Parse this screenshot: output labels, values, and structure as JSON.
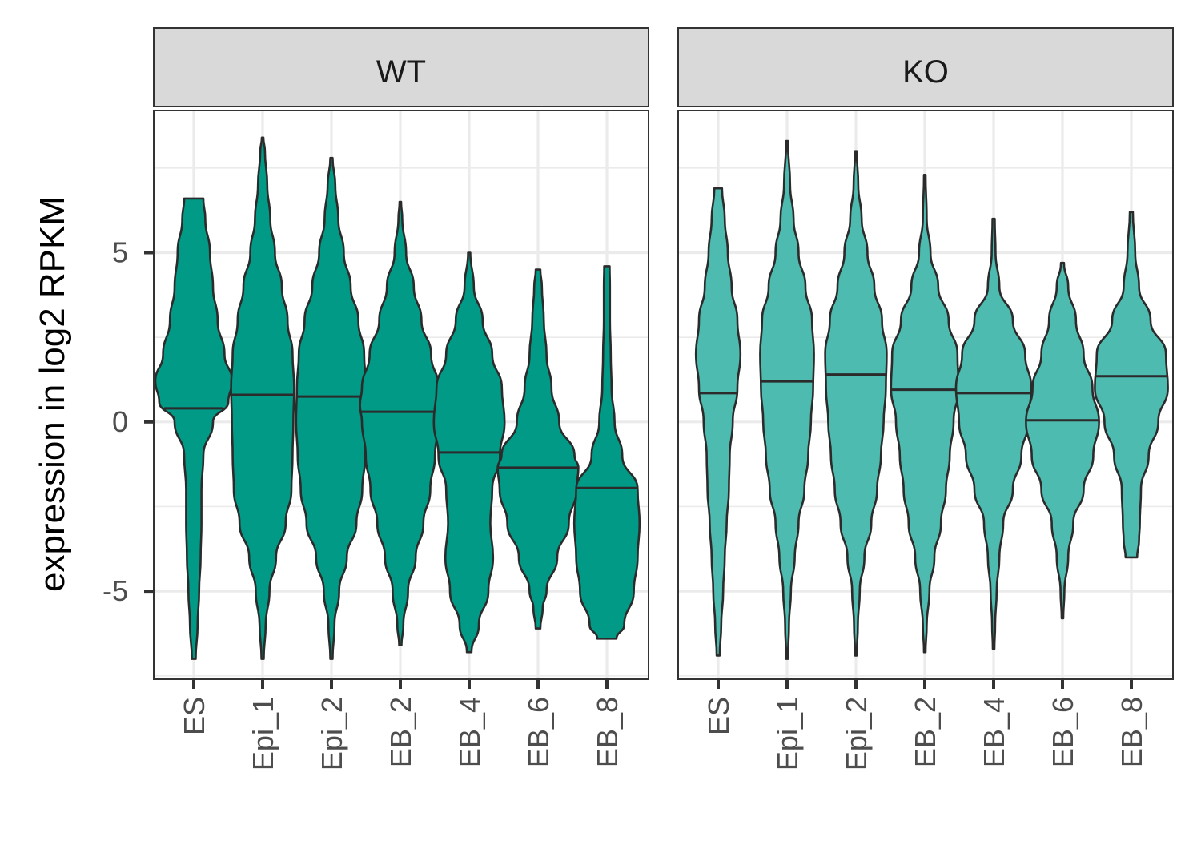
{
  "chart_data": {
    "type": "violin",
    "ylabel": "expression in log2 RPKM",
    "xlabel": "",
    "ylim": [
      -7.6,
      9.2
    ],
    "y_ticks": [
      "5",
      "0",
      "-5"
    ],
    "y_tick_values": [
      5,
      0,
      -5
    ],
    "categories": [
      "ES",
      "Epi_1",
      "Epi_2",
      "EB_2",
      "EB_4",
      "EB_6",
      "EB_8"
    ],
    "grid": true,
    "panels": [
      {
        "name": "WT",
        "fill": "#009a86",
        "violins": [
          {
            "category": "ES",
            "min": -7.0,
            "max": 6.6,
            "median": 0.4,
            "profile": [
              [
                -7.0,
                0.05
              ],
              [
                -6.0,
                0.1
              ],
              [
                -5.0,
                0.14
              ],
              [
                -4.0,
                0.18
              ],
              [
                -3.0,
                0.2
              ],
              [
                -2.0,
                0.2
              ],
              [
                -1.0,
                0.25
              ],
              [
                0.0,
                0.5
              ],
              [
                0.6,
                0.9
              ],
              [
                1.2,
                1.0
              ],
              [
                2.0,
                0.8
              ],
              [
                3.0,
                0.62
              ],
              [
                4.0,
                0.5
              ],
              [
                5.0,
                0.42
              ],
              [
                6.0,
                0.3
              ],
              [
                6.6,
                0.25
              ]
            ]
          },
          {
            "category": "Epi_1",
            "min": -7.0,
            "max": 8.4,
            "median": 0.8,
            "profile": [
              [
                -7.0,
                0.03
              ],
              [
                -6.0,
                0.08
              ],
              [
                -5.0,
                0.18
              ],
              [
                -4.0,
                0.35
              ],
              [
                -3.0,
                0.6
              ],
              [
                -2.0,
                0.75
              ],
              [
                -1.0,
                0.78
              ],
              [
                0.0,
                0.8
              ],
              [
                1.0,
                0.82
              ],
              [
                2.0,
                0.78
              ],
              [
                3.0,
                0.65
              ],
              [
                4.0,
                0.5
              ],
              [
                5.0,
                0.32
              ],
              [
                6.0,
                0.2
              ],
              [
                7.0,
                0.12
              ],
              [
                8.0,
                0.06
              ],
              [
                8.4,
                0.02
              ]
            ]
          },
          {
            "category": "Epi_2",
            "min": -7.0,
            "max": 7.8,
            "median": 0.75,
            "profile": [
              [
                -7.0,
                0.03
              ],
              [
                -6.0,
                0.08
              ],
              [
                -5.0,
                0.2
              ],
              [
                -4.0,
                0.4
              ],
              [
                -3.0,
                0.65
              ],
              [
                -2.0,
                0.8
              ],
              [
                -1.0,
                0.88
              ],
              [
                0.0,
                0.92
              ],
              [
                1.0,
                0.9
              ],
              [
                2.0,
                0.85
              ],
              [
                3.0,
                0.7
              ],
              [
                4.0,
                0.5
              ],
              [
                5.0,
                0.32
              ],
              [
                6.0,
                0.18
              ],
              [
                7.0,
                0.1
              ],
              [
                7.8,
                0.03
              ]
            ]
          },
          {
            "category": "EB_2",
            "min": -6.6,
            "max": 6.5,
            "median": 0.3,
            "profile": [
              [
                -6.6,
                0.03
              ],
              [
                -6.0,
                0.08
              ],
              [
                -5.0,
                0.2
              ],
              [
                -4.0,
                0.4
              ],
              [
                -3.0,
                0.6
              ],
              [
                -2.0,
                0.78
              ],
              [
                -1.0,
                0.9
              ],
              [
                0.0,
                1.0
              ],
              [
                0.5,
                1.05
              ],
              [
                1.0,
                1.0
              ],
              [
                2.0,
                0.8
              ],
              [
                3.0,
                0.55
              ],
              [
                4.0,
                0.35
              ],
              [
                5.0,
                0.15
              ],
              [
                6.0,
                0.05
              ],
              [
                6.5,
                0.02
              ]
            ]
          },
          {
            "category": "EB_4",
            "min": -6.8,
            "max": 5.0,
            "median": -0.9,
            "profile": [
              [
                -6.8,
                0.06
              ],
              [
                -6.0,
                0.25
              ],
              [
                -5.0,
                0.5
              ],
              [
                -4.0,
                0.62
              ],
              [
                -3.0,
                0.55
              ],
              [
                -2.0,
                0.6
              ],
              [
                -1.0,
                0.8
              ],
              [
                0.0,
                0.92
              ],
              [
                1.0,
                0.85
              ],
              [
                2.0,
                0.6
              ],
              [
                3.0,
                0.35
              ],
              [
                4.0,
                0.12
              ],
              [
                5.0,
                0.03
              ]
            ]
          },
          {
            "category": "EB_6",
            "min": -6.1,
            "max": 4.5,
            "median": -1.35,
            "profile": [
              [
                -6.1,
                0.06
              ],
              [
                -5.5,
                0.12
              ],
              [
                -5.0,
                0.22
              ],
              [
                -4.0,
                0.5
              ],
              [
                -3.0,
                0.8
              ],
              [
                -2.0,
                1.0
              ],
              [
                -1.35,
                1.05
              ],
              [
                -1.0,
                0.95
              ],
              [
                0.0,
                0.55
              ],
              [
                1.0,
                0.35
              ],
              [
                2.0,
                0.22
              ],
              [
                3.0,
                0.15
              ],
              [
                4.0,
                0.1
              ],
              [
                4.5,
                0.06
              ]
            ]
          },
          {
            "category": "EB_8",
            "min": -6.4,
            "max": 4.6,
            "median": -1.95,
            "profile": [
              [
                -6.4,
                0.25
              ],
              [
                -6.0,
                0.45
              ],
              [
                -5.0,
                0.7
              ],
              [
                -4.0,
                0.8
              ],
              [
                -3.0,
                0.85
              ],
              [
                -2.0,
                0.8
              ],
              [
                -1.0,
                0.4
              ],
              [
                0.0,
                0.2
              ],
              [
                1.0,
                0.12
              ],
              [
                2.0,
                0.1
              ],
              [
                3.0,
                0.08
              ],
              [
                4.0,
                0.08
              ],
              [
                4.6,
                0.07
              ]
            ]
          }
        ]
      },
      {
        "name": "KO",
        "fill": "#4dbbaf",
        "violins": [
          {
            "category": "ES",
            "min": -6.9,
            "max": 6.9,
            "median": 0.85,
            "profile": [
              [
                -6.9,
                0.04
              ],
              [
                -6.0,
                0.08
              ],
              [
                -5.0,
                0.13
              ],
              [
                -4.0,
                0.17
              ],
              [
                -3.0,
                0.22
              ],
              [
                -2.0,
                0.28
              ],
              [
                -1.0,
                0.3
              ],
              [
                0.0,
                0.38
              ],
              [
                1.0,
                0.5
              ],
              [
                2.0,
                0.58
              ],
              [
                3.0,
                0.5
              ],
              [
                4.0,
                0.35
              ],
              [
                5.0,
                0.25
              ],
              [
                6.0,
                0.17
              ],
              [
                6.9,
                0.1
              ]
            ]
          },
          {
            "category": "Epi_1",
            "min": -7.0,
            "max": 8.3,
            "median": 1.2,
            "profile": [
              [
                -7.0,
                0.02
              ],
              [
                -6.0,
                0.05
              ],
              [
                -5.0,
                0.1
              ],
              [
                -4.0,
                0.2
              ],
              [
                -3.0,
                0.3
              ],
              [
                -2.0,
                0.45
              ],
              [
                -1.0,
                0.55
              ],
              [
                0.0,
                0.62
              ],
              [
                1.0,
                0.68
              ],
              [
                2.0,
                0.7
              ],
              [
                3.0,
                0.65
              ],
              [
                4.0,
                0.48
              ],
              [
                5.0,
                0.3
              ],
              [
                6.0,
                0.17
              ],
              [
                7.0,
                0.08
              ],
              [
                8.3,
                0.02
              ]
            ]
          },
          {
            "category": "Epi_2",
            "min": -6.9,
            "max": 8.0,
            "median": 1.4,
            "profile": [
              [
                -6.9,
                0.02
              ],
              [
                -6.0,
                0.05
              ],
              [
                -5.0,
                0.1
              ],
              [
                -4.0,
                0.22
              ],
              [
                -3.0,
                0.4
              ],
              [
                -2.0,
                0.55
              ],
              [
                -1.0,
                0.65
              ],
              [
                0.0,
                0.72
              ],
              [
                1.0,
                0.78
              ],
              [
                2.0,
                0.8
              ],
              [
                3.0,
                0.68
              ],
              [
                4.0,
                0.48
              ],
              [
                5.0,
                0.3
              ],
              [
                6.0,
                0.15
              ],
              [
                7.0,
                0.06
              ],
              [
                8.0,
                0.02
              ]
            ]
          },
          {
            "category": "EB_2",
            "min": -6.8,
            "max": 7.3,
            "median": 0.95,
            "profile": [
              [
                -6.8,
                0.02
              ],
              [
                -6.0,
                0.05
              ],
              [
                -5.0,
                0.12
              ],
              [
                -4.0,
                0.25
              ],
              [
                -3.0,
                0.42
              ],
              [
                -2.0,
                0.55
              ],
              [
                -1.0,
                0.65
              ],
              [
                0.0,
                0.75
              ],
              [
                1.0,
                0.88
              ],
              [
                2.0,
                0.85
              ],
              [
                3.0,
                0.62
              ],
              [
                4.0,
                0.35
              ],
              [
                5.0,
                0.15
              ],
              [
                6.0,
                0.05
              ],
              [
                7.3,
                0.02
              ]
            ]
          },
          {
            "category": "EB_4",
            "min": -6.7,
            "max": 6.0,
            "median": 0.85,
            "profile": [
              [
                -6.7,
                0.02
              ],
              [
                -6.0,
                0.04
              ],
              [
                -5.0,
                0.08
              ],
              [
                -4.0,
                0.15
              ],
              [
                -3.0,
                0.25
              ],
              [
                -2.0,
                0.5
              ],
              [
                -1.0,
                0.72
              ],
              [
                0.0,
                0.9
              ],
              [
                1.0,
                0.98
              ],
              [
                2.0,
                0.82
              ],
              [
                3.0,
                0.5
              ],
              [
                4.0,
                0.15
              ],
              [
                5.0,
                0.05
              ],
              [
                6.0,
                0.03
              ]
            ]
          },
          {
            "category": "EB_6",
            "min": -5.8,
            "max": 4.7,
            "median": 0.05,
            "profile": [
              [
                -5.8,
                0.02
              ],
              [
                -5.0,
                0.05
              ],
              [
                -4.0,
                0.15
              ],
              [
                -3.0,
                0.28
              ],
              [
                -2.0,
                0.55
              ],
              [
                -1.0,
                0.8
              ],
              [
                0.0,
                0.95
              ],
              [
                1.0,
                0.78
              ],
              [
                2.0,
                0.55
              ],
              [
                3.0,
                0.35
              ],
              [
                4.0,
                0.15
              ],
              [
                4.7,
                0.04
              ]
            ]
          },
          {
            "category": "EB_8",
            "min": -4.0,
            "max": 6.2,
            "median": 1.35,
            "profile": [
              [
                -4.0,
                0.15
              ],
              [
                -3.5,
                0.2
              ],
              [
                -3.0,
                0.22
              ],
              [
                -2.0,
                0.25
              ],
              [
                -1.0,
                0.45
              ],
              [
                0.0,
                0.7
              ],
              [
                1.0,
                0.95
              ],
              [
                2.0,
                0.9
              ],
              [
                3.0,
                0.5
              ],
              [
                4.0,
                0.2
              ],
              [
                5.0,
                0.1
              ],
              [
                6.2,
                0.04
              ]
            ]
          }
        ]
      }
    ]
  }
}
